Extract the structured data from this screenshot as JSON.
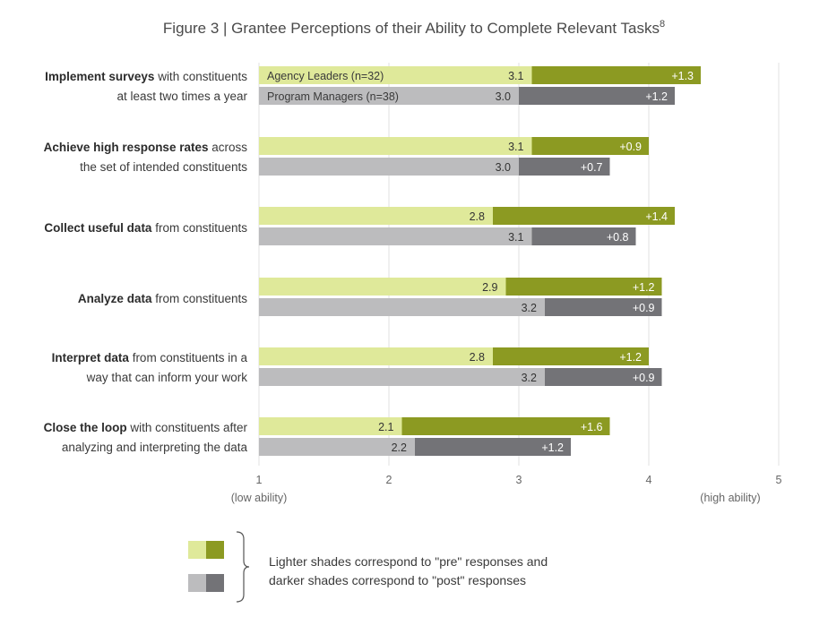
{
  "chart_data": {
    "type": "bar",
    "title": "Figure 3 | Grantee Perceptions of their Ability to Complete Relevant Tasks",
    "title_superscript": "8",
    "categories": [
      {
        "bold": "Implement surveys",
        "rest": " with constituents",
        "line2": "at least two times a year"
      },
      {
        "bold": "Achieve high response rates",
        "rest": " across",
        "line2": "the set of intended constituents"
      },
      {
        "bold": "Collect useful data",
        "rest": " from constituents",
        "line2": ""
      },
      {
        "bold": "Analyze data",
        "rest": " from constituents",
        "line2": ""
      },
      {
        "bold": "Interpret data",
        "rest": " from constituents in a",
        "line2": "way that can inform your work"
      },
      {
        "bold": "Close the loop",
        "rest": " with constituents after",
        "line2": "analyzing and interpreting the data"
      }
    ],
    "series": [
      {
        "name": "Agency Leaders (n=32)",
        "pre": [
          3.1,
          3.1,
          2.8,
          2.9,
          2.8,
          2.1
        ],
        "change": [
          1.3,
          0.9,
          1.4,
          1.2,
          1.2,
          1.6
        ],
        "pre_labels": [
          "3.1",
          "3.1",
          "2.8",
          "2.9",
          "2.8",
          "2.1"
        ],
        "change_labels": [
          "+1.3",
          "+0.9",
          "+1.4",
          "+1.2",
          "+1.2",
          "+1.6"
        ]
      },
      {
        "name": "Program Managers (n=38)",
        "pre": [
          3.0,
          3.0,
          3.1,
          3.2,
          3.2,
          2.2
        ],
        "change": [
          1.2,
          0.7,
          0.8,
          0.9,
          0.9,
          1.2
        ],
        "pre_labels": [
          "3.0",
          "3.0",
          "3.1",
          "3.2",
          "3.2",
          "2.2"
        ],
        "change_labels": [
          "+1.2",
          "+0.7",
          "+0.8",
          "+0.9",
          "+0.9",
          "+1.2"
        ]
      }
    ],
    "xlim": [
      1,
      5
    ],
    "xticks": [
      "1",
      "2",
      "3",
      "4",
      "5"
    ],
    "x_min_caption": "(low ability)",
    "x_max_caption": "(high ability)",
    "grid": true,
    "legend_placement": "bottom-left",
    "legend_text": [
      "Lighter shades correspond to \"pre\" responses and",
      "darker shades correspond to \"post\" responses"
    ],
    "colors": {
      "leaders_pre": "#dfe99a",
      "leaders_post": "#8c9a22",
      "managers_pre": "#bcbcbe",
      "managers_post": "#737377",
      "grid": "#e2e2e2"
    }
  }
}
